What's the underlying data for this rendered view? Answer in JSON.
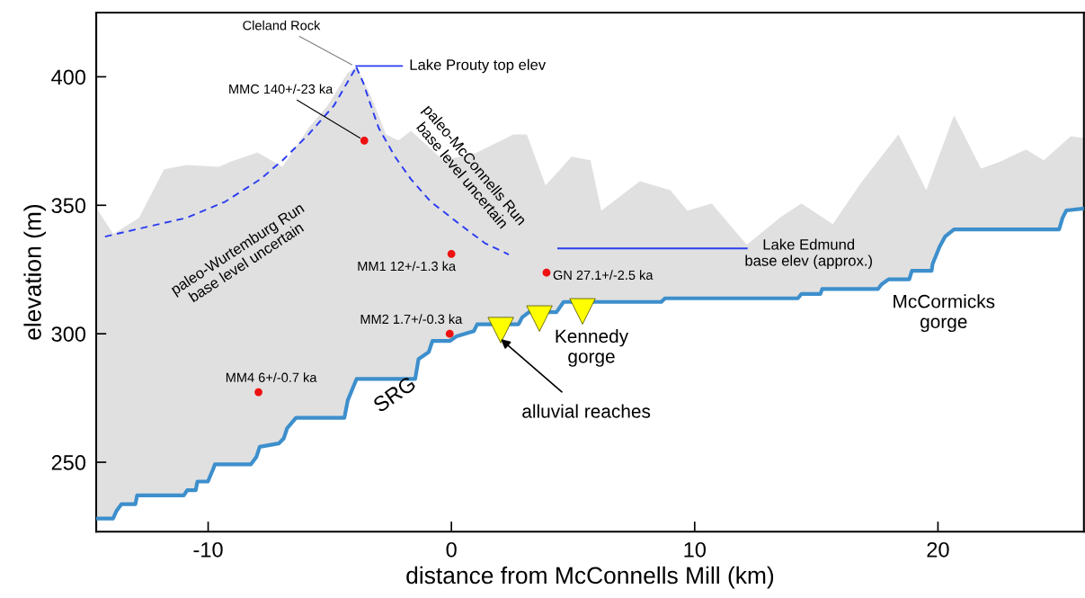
{
  "chart_data": {
    "type": "line",
    "xlabel": "distance from McConnells Mill (km)",
    "ylabel": "elevation (m)",
    "xlim": [
      -14.6,
      26
    ],
    "ylim": [
      223,
      425
    ],
    "xticks": [
      -10,
      0,
      10,
      20
    ],
    "yticks": [
      250,
      300,
      350,
      400
    ],
    "grid": false,
    "series": [
      {
        "type": "area",
        "color": "#e0e0e0",
        "x": [
          -14.6,
          -13.9,
          -12.84,
          -11.81,
          -10.89,
          -9.56,
          -9.04,
          -7.97,
          -6.94,
          -5.87,
          -5.09,
          -4.28,
          -3.91,
          -3.36,
          -2.69,
          -2.18,
          -1.66,
          -0.33,
          1.0,
          2.55,
          3.1,
          3.87,
          4.94,
          5.72,
          6.16,
          7.75,
          9.0,
          9.7,
          10.7,
          12.14,
          13.54,
          14.39,
          15.68,
          16.83,
          18.38,
          19.52,
          20.66,
          21.77,
          22.51,
          23.62,
          24.35,
          25.46,
          26.0
        ],
        "values": [
          349.0,
          338.8,
          345.1,
          364.0,
          365.7,
          365.0,
          367.1,
          370.6,
          365.0,
          380.1,
          388.8,
          401.4,
          403.8,
          393.7,
          377.6,
          375.2,
          379.0,
          367.5,
          370.3,
          377.6,
          377.6,
          357.7,
          368.9,
          367.5,
          347.9,
          359.4,
          355.9,
          347.9,
          350.7,
          334.6,
          345.5,
          350.7,
          342.7,
          358.7,
          377.6,
          355.9,
          385.0,
          364.3,
          366.8,
          371.7,
          367.5,
          376.9,
          376.2
        ]
      },
      {
        "color": "#3d8fcc",
        "line_style": "solid",
        "x": [
          -14.55,
          -13.91,
          -13.77,
          -13.56,
          -12.99,
          -12.92,
          -11.0,
          -10.86,
          -10.51,
          -10.44,
          -10.01,
          -9.8,
          -9.72,
          -8.24,
          -8.02,
          -7.88,
          -7.1,
          -6.89,
          -6.75,
          -6.39,
          -4.4,
          -4.26,
          -3.9,
          -1.49,
          -1.35,
          -0.93,
          -0.78,
          -0.07,
          0.21,
          0.92,
          1.06,
          2.76,
          2.91,
          3.19,
          4.32,
          4.61,
          8.63,
          8.78,
          14.24,
          14.39,
          15.17,
          15.24,
          17.53,
          17.68,
          17.97,
          18.82,
          18.93,
          19.74,
          19.78,
          20.07,
          20.3,
          20.66,
          24.98,
          25.13,
          25.28,
          25.98
        ],
        "values": [
          228.1,
          228.1,
          231.0,
          233.7,
          233.7,
          237.1,
          237.1,
          239.1,
          239.1,
          242.5,
          242.5,
          247.2,
          249.2,
          249.2,
          252.0,
          256.0,
          257.3,
          259.3,
          263.3,
          267.3,
          267.3,
          274.1,
          282.4,
          282.4,
          290.2,
          292.9,
          297.2,
          297.2,
          299.0,
          301.0,
          303.7,
          303.7,
          306.4,
          308.4,
          308.4,
          312.4,
          312.4,
          313.8,
          313.8,
          315.5,
          315.5,
          317.4,
          317.4,
          319.2,
          321.2,
          321.2,
          324.5,
          324.5,
          327.2,
          333.9,
          337.9,
          340.6,
          340.6,
          345.3,
          348.0,
          348.7
        ]
      },
      {
        "color": "#2a3cf0",
        "line_style": "dashed",
        "x": [
          -14.24,
          -12.84,
          -10.89,
          -9.3,
          -7.86,
          -6.94,
          -5.87,
          -4.83,
          -3.91
        ],
        "values": [
          337.8,
          340.9,
          345.1,
          351.4,
          360.1,
          367.5,
          377.6,
          388.8,
          403.8
        ]
      },
      {
        "color": "#2a3cf0",
        "line_style": "dashed",
        "x": [
          -3.91,
          -3.62,
          -3.36,
          -2.99,
          -2.32,
          -1.66,
          -0.85,
          0.33,
          1.37,
          2.36
        ],
        "values": [
          403.8,
          397.6,
          390.2,
          380.1,
          368.9,
          360.1,
          351.4,
          342.7,
          335.3,
          330.8
        ]
      },
      {
        "color": "#2a3cf0",
        "line_style": "solid",
        "x": [
          -3.91,
          -2.03
        ],
        "values": [
          404.2,
          404.2
        ]
      },
      {
        "color": "#2a3cf0",
        "line_style": "solid",
        "x": [
          4.39,
          12.14
        ],
        "values": [
          333.2,
          333.2
        ]
      },
      {
        "type": "scatter",
        "color": "#ee1111",
        "marker": "circle",
        "x": [
          -3.58,
          0.0,
          3.91,
          -0.07,
          -7.93
        ],
        "values": [
          375.2,
          331.1,
          323.8,
          300.0,
          277.3
        ]
      },
      {
        "type": "scatter",
        "color": "#ffff00",
        "marker": "triangle",
        "x": [
          2.03,
          3.62,
          5.39
        ],
        "values": [
          301.4,
          305.9,
          308.7
        ]
      }
    ],
    "annotations": [
      {
        "text": "Cleland Rock",
        "x": -3.91,
        "y": 403.8
      },
      {
        "text": "MMC 140+/-23 ka",
        "x": -3.58,
        "y": 375.2
      },
      {
        "text": "MM1 12+/-1.3 ka",
        "x": 0.0,
        "y": 331.1
      },
      {
        "text": "GN 27.1+/-2.5 ka",
        "x": 3.91,
        "y": 323.8
      },
      {
        "text": "MM2 1.7+/-0.3 ka",
        "x": -0.07,
        "y": 300.0
      },
      {
        "text": "MM4 6+/-0.7 ka",
        "x": -7.93,
        "y": 277.3
      },
      "paleo-Wurtemburg Run\nbase level uncertain",
      "paleo-McConnells Run\nbase level uncertain",
      {
        "text": "Lake Prouty top elev",
        "x": -2.03,
        "y": 404.2
      },
      {
        "text": "Lake Edmund\nbase elev (approx.)",
        "x": 12.14,
        "y": 333.2
      },
      {
        "text": "alluvial reaches",
        "x": 2.03,
        "y": 297.9
      },
      "Kennedy\ngorge",
      "McCormicks\ngorge",
      "SRG"
    ]
  }
}
